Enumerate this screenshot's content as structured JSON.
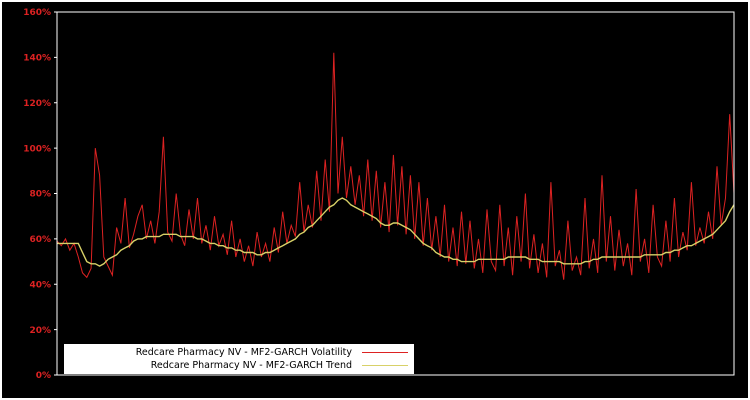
{
  "chart_data": {
    "type": "line",
    "title": "",
    "xlabel": "",
    "ylabel": "",
    "ylim": [
      0,
      160
    ],
    "grid": false,
    "legend_position": "bottom-left",
    "y_ticks": [
      {
        "value": 0,
        "label": "0%"
      },
      {
        "value": 20,
        "label": "20%"
      },
      {
        "value": 40,
        "label": "40%"
      },
      {
        "value": 60,
        "label": "60%"
      },
      {
        "value": 80,
        "label": "80%"
      },
      {
        "value": 100,
        "label": "100%"
      },
      {
        "value": 120,
        "label": "120%"
      },
      {
        "value": 140,
        "label": "140%"
      },
      {
        "value": 160,
        "label": "160%"
      }
    ],
    "colors": {
      "background": "#000000",
      "frame": "#ffffff",
      "tick_label": "#dd2222",
      "legend_background": "#ffffff",
      "legend_text": "#000000"
    },
    "series": [
      {
        "name": "Redcare Pharmacy NV - MF2-GARCH Volatility",
        "color": "#dd2222",
        "width": 1,
        "values": [
          59,
          57,
          60,
          55,
          58,
          52,
          45,
          43,
          47,
          100,
          88,
          52,
          48,
          44,
          65,
          58,
          78,
          56,
          62,
          70,
          75,
          60,
          68,
          58,
          72,
          105,
          63,
          59,
          80,
          62,
          57,
          73,
          60,
          78,
          58,
          66,
          55,
          70,
          57,
          62,
          53,
          68,
          52,
          60,
          50,
          57,
          48,
          63,
          52,
          58,
          50,
          65,
          54,
          72,
          58,
          66,
          61,
          85,
          63,
          75,
          65,
          90,
          68,
          95,
          72,
          142,
          80,
          105,
          78,
          92,
          75,
          88,
          70,
          95,
          68,
          90,
          65,
          85,
          63,
          97,
          66,
          92,
          62,
          88,
          60,
          85,
          57,
          78,
          55,
          70,
          52,
          75,
          50,
          65,
          48,
          72,
          49,
          68,
          47,
          60,
          45,
          73,
          50,
          46,
          75,
          48,
          65,
          44,
          70,
          50,
          80,
          47,
          62,
          45,
          58,
          43,
          85,
          48,
          55,
          42,
          68,
          46,
          52,
          44,
          78,
          47,
          60,
          45,
          88,
          50,
          70,
          46,
          64,
          48,
          58,
          44,
          82,
          50,
          60,
          45,
          75,
          52,
          48,
          68,
          50,
          78,
          52,
          63,
          55,
          85,
          57,
          65,
          58,
          72,
          60,
          92,
          66,
          78,
          115,
          80
        ]
      },
      {
        "name": "Redcare Pharmacy NV - MF2-GARCH Trend",
        "color": "#d8d168",
        "width": 1.4,
        "values": [
          58,
          58,
          58,
          58,
          58,
          58,
          54,
          50,
          49,
          49,
          48,
          49,
          51,
          52,
          53,
          55,
          56,
          57,
          59,
          60,
          60,
          61,
          61,
          61,
          61,
          62,
          62,
          62,
          62,
          61,
          61,
          61,
          61,
          60,
          60,
          59,
          58,
          58,
          57,
          57,
          56,
          56,
          55,
          55,
          54,
          54,
          54,
          53,
          53,
          54,
          54,
          55,
          56,
          57,
          58,
          59,
          60,
          62,
          63,
          65,
          66,
          68,
          70,
          72,
          74,
          75,
          77,
          78,
          77,
          75,
          74,
          73,
          72,
          71,
          70,
          69,
          67,
          66,
          66,
          67,
          67,
          66,
          65,
          64,
          62,
          60,
          58,
          57,
          56,
          54,
          53,
          52,
          52,
          51,
          51,
          50,
          50,
          50,
          50,
          51,
          51,
          51,
          51,
          51,
          51,
          51,
          52,
          52,
          52,
          52,
          52,
          51,
          51,
          51,
          50,
          50,
          50,
          50,
          50,
          49,
          49,
          49,
          49,
          49,
          50,
          50,
          51,
          51,
          52,
          52,
          52,
          52,
          52,
          52,
          52,
          52,
          52,
          52,
          53,
          53,
          53,
          53,
          53,
          54,
          54,
          55,
          55,
          56,
          57,
          57,
          58,
          59,
          60,
          61,
          62,
          64,
          66,
          68,
          72,
          75
        ]
      }
    ]
  }
}
